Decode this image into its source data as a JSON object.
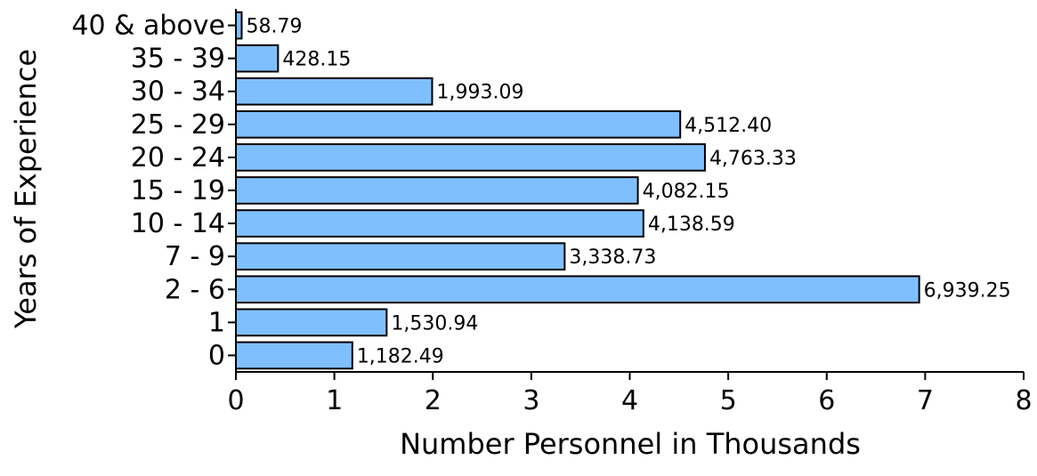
{
  "chart_data": {
    "type": "bar",
    "orientation": "horizontal",
    "title": "",
    "xlabel": "Number Personnel in Thousands",
    "ylabel": "Years of Experience",
    "xlim": [
      0,
      8
    ],
    "x_ticks": [
      "0",
      "1",
      "2",
      "3",
      "4",
      "5",
      "6",
      "7",
      "8"
    ],
    "categories": [
      "0",
      "1",
      "2 - 6",
      "7 - 9",
      "10 - 14",
      "15 - 19",
      "20 - 24",
      "25 - 29",
      "30 - 34",
      "35 - 39",
      "40 & above"
    ],
    "values": [
      1.18249,
      1.53094,
      6.93925,
      3.33873,
      4.13859,
      4.08215,
      4.76333,
      4.5124,
      1.99309,
      0.42815,
      0.05879
    ],
    "value_labels": [
      "1,182.49",
      "1,530.94",
      "6,939.25",
      "3,338.73",
      "4,138.59",
      "4,082.15",
      "4,763.33",
      "4,512.40",
      "1,993.09",
      "428.15",
      "58.79"
    ],
    "grid": false,
    "legend": "none",
    "colors": {
      "bar_fill": "#80bfff",
      "bar_stroke": "#000000"
    }
  }
}
